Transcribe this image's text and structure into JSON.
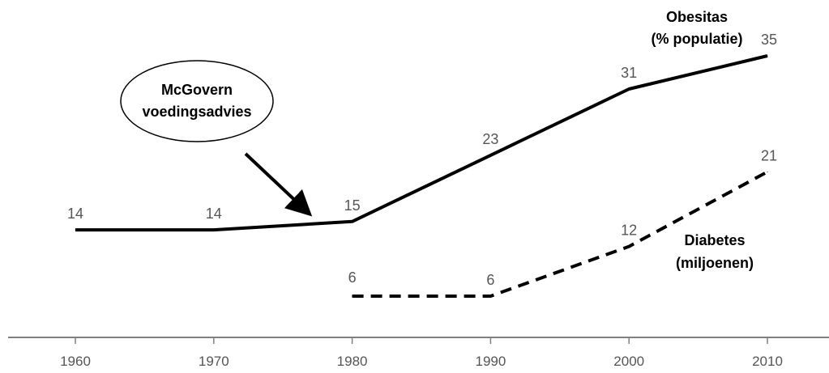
{
  "chart_data": {
    "type": "line",
    "x": [
      1960,
      1970,
      1980,
      1990,
      2000,
      2010
    ],
    "x_tick_labels": [
      "1960",
      "1970",
      "1980",
      "1990",
      "2000",
      "2010"
    ],
    "xlim": [
      1960,
      2010
    ],
    "grid": false,
    "series": [
      {
        "name_lines": [
          "Obesitas",
          "(% populatie)"
        ],
        "line_style": "solid",
        "points": [
          {
            "x": 1960,
            "y": 14
          },
          {
            "x": 1970,
            "y": 14
          },
          {
            "x": 1980,
            "y": 15
          },
          {
            "x": 1990,
            "y": 23
          },
          {
            "x": 2000,
            "y": 31
          },
          {
            "x": 2010,
            "y": 35
          }
        ]
      },
      {
        "name_lines": [
          "Diabetes",
          "(miljoenen)"
        ],
        "line_style": "dashed",
        "points": [
          {
            "x": 1980,
            "y": 6
          },
          {
            "x": 1990,
            "y": 6
          },
          {
            "x": 2000,
            "y": 12
          },
          {
            "x": 2010,
            "y": 21
          }
        ]
      }
    ],
    "annotation": {
      "text_lines": [
        "McGovern",
        "voedingsadvies"
      ],
      "arrow_target_x": 1977
    },
    "colors": {
      "line": "#000000",
      "axis": "#7f7f7f",
      "label": "#555555"
    }
  }
}
